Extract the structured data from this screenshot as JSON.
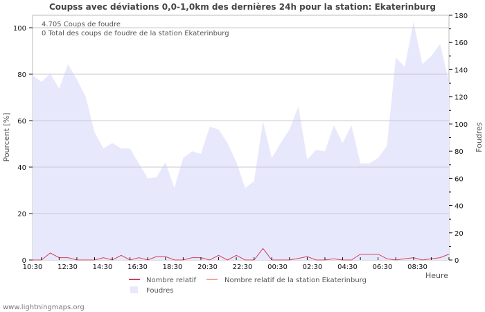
{
  "title": "Coupss avec déviations 0,0-1,0km des dernières 24h pour la station: Ekaterinburg",
  "footer": "www.lightningmaps.org",
  "annotations": {
    "line1": "4.705  Coups de foudre",
    "line2": "0 Total des coups de foudre de la station Ekaterinburg"
  },
  "axes": {
    "left_title": "Pourcent   [%]",
    "right_title": "Foudres",
    "x_title": "Heure"
  },
  "legend": {
    "item1": "Nombre relatif",
    "item2": "Nombre relatif de la station Ekaterinburg",
    "item3": "Foudres"
  },
  "colors": {
    "area": "#e8e8fc",
    "relative_line": "#d0415a",
    "station_line": "#f4a3a0",
    "grid": "#c8c8d0",
    "axis": "#bbbbbb"
  },
  "chart_data": {
    "type": "area+line",
    "title": "Coupss avec déviations 0,0-1,0km des dernières 24h pour la station: Ekaterinburg",
    "xlabel": "Heure",
    "ylabel_left": "Pourcent   [%]",
    "ylabel_right": "Foudres",
    "ylim_left": [
      0,
      100
    ],
    "ylim_right": [
      0,
      180
    ],
    "left_ticks": [
      0,
      20,
      40,
      60,
      80,
      100
    ],
    "right_ticks": [
      0,
      20,
      40,
      60,
      80,
      100,
      120,
      140,
      160,
      180
    ],
    "x_tick_labels": [
      "10:30",
      "12:30",
      "14:30",
      "16:30",
      "18:30",
      "20:30",
      "22:30",
      "00:30",
      "02:30",
      "04:30",
      "06:30",
      "08:30"
    ],
    "grid": true,
    "legend_position": "bottom",
    "series": [
      {
        "name": "Foudres",
        "axis": "right",
        "kind": "area",
        "values": [
          136,
          131,
          137,
          126,
          144,
          133,
          120,
          94,
          82,
          86,
          82,
          82,
          71,
          60,
          61,
          72,
          53,
          75,
          80,
          78,
          98,
          96,
          86,
          72,
          53,
          58,
          102,
          75,
          86,
          96,
          113,
          74,
          81,
          80,
          99,
          86,
          99,
          71,
          71,
          75,
          84,
          149,
          142,
          175,
          144,
          150,
          159,
          131
        ]
      },
      {
        "name": "Nombre relatif",
        "axis": "left",
        "kind": "line",
        "values": [
          0,
          0,
          3,
          1,
          1,
          0,
          0,
          0,
          1,
          0,
          2,
          0,
          1,
          0,
          1.5,
          1.5,
          0,
          0,
          1,
          1,
          0,
          2,
          0,
          2,
          0,
          0,
          5,
          0,
          0,
          0,
          0.7,
          1.5,
          0,
          0,
          0.5,
          0,
          0,
          2.5,
          2.5,
          2.5,
          0.5,
          0,
          0.5,
          1,
          0,
          0.5,
          1,
          2.5
        ]
      },
      {
        "name": "Nombre relatif de la station Ekaterinburg",
        "axis": "left",
        "kind": "line",
        "values": []
      }
    ]
  }
}
